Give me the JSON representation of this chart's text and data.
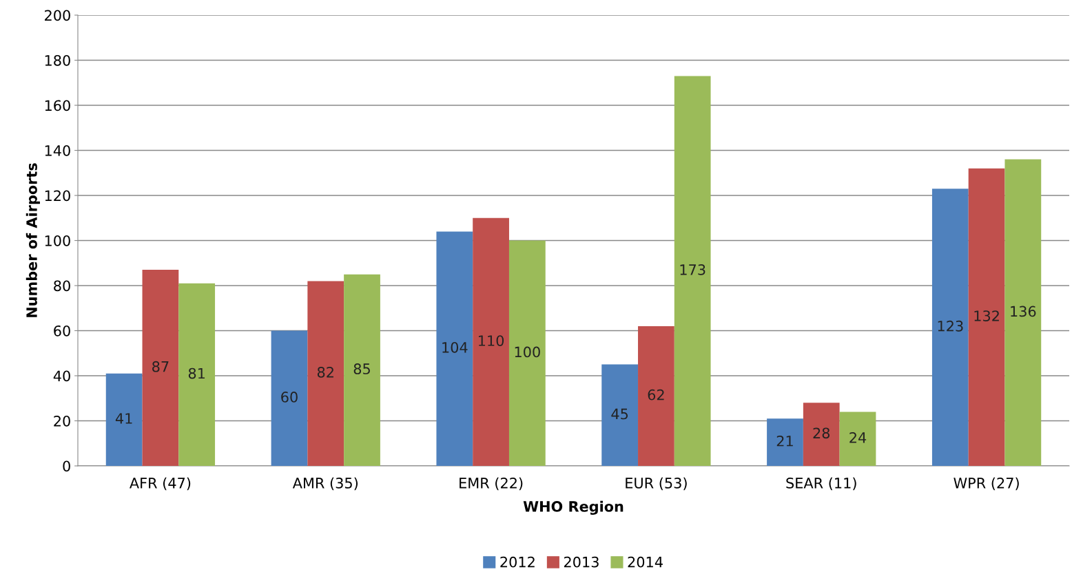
{
  "chart_data": {
    "type": "bar",
    "xlabel": "WHO Region",
    "ylabel": "Number of Airports",
    "categories": [
      "AFR (47)",
      "AMR (35)",
      "EMR (22)",
      "EUR (53)",
      "SEAR (11)",
      "WPR (27)"
    ],
    "series": [
      {
        "name": "2012",
        "color": "#4f81bd",
        "values": [
          41,
          60,
          104,
          45,
          21,
          123
        ]
      },
      {
        "name": "2013",
        "color": "#c0504d",
        "values": [
          87,
          82,
          110,
          62,
          28,
          132
        ]
      },
      {
        "name": "2014",
        "color": "#9bbb59",
        "values": [
          81,
          85,
          100,
          173,
          24,
          136
        ]
      }
    ],
    "ylim": [
      0,
      200
    ],
    "yticks": [
      0,
      20,
      40,
      60,
      80,
      100,
      120,
      140,
      160,
      180,
      200
    ],
    "grid": "y",
    "legend": "bottom",
    "data_labels": true
  }
}
